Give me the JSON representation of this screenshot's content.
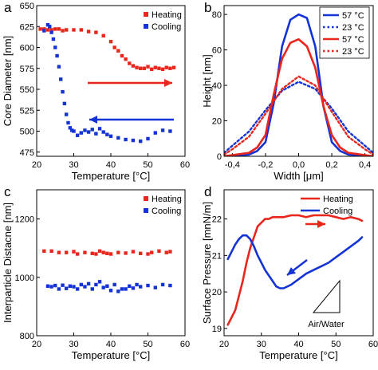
{
  "chart_data": [
    {
      "panel": "a",
      "type": "scatter",
      "xlabel": "Temperature [°C]",
      "ylabel": "Core Diameter [nm]",
      "xlim": [
        20,
        60
      ],
      "ylim": [
        470,
        650
      ],
      "xticks": [
        20,
        30,
        40,
        50,
        60
      ],
      "yticks": [
        475,
        500,
        525,
        550,
        575,
        600,
        625,
        650
      ],
      "legend_position": "top-right",
      "series": [
        {
          "name": "Heating",
          "color": "#e8261c",
          "x": [
            21,
            22,
            23,
            24,
            25,
            26,
            27,
            28,
            30,
            32,
            34,
            36,
            38,
            40,
            41,
            42,
            43,
            44,
            45,
            46,
            47,
            48,
            49,
            50,
            51,
            52,
            53,
            54,
            55,
            56,
            57
          ],
          "y": [
            622,
            622,
            621,
            621,
            622,
            622,
            620,
            621,
            621,
            621,
            619,
            618,
            614,
            607,
            600,
            596,
            590,
            586,
            581,
            578,
            576,
            575,
            575,
            577,
            574,
            576,
            575,
            574,
            576,
            575,
            576
          ]
        },
        {
          "name": "Cooling",
          "color": "#1433d6",
          "x": [
            22,
            23,
            23.5,
            24,
            24.5,
            25,
            25.5,
            26,
            26.5,
            27,
            27.5,
            28,
            28.5,
            29,
            29.5,
            30,
            31,
            32,
            33,
            34,
            35,
            36,
            37,
            38,
            39,
            40,
            42,
            44,
            46,
            48,
            50,
            52,
            54,
            56
          ],
          "y": [
            620,
            627,
            625,
            618,
            610,
            600,
            590,
            577,
            562,
            547,
            533,
            520,
            510,
            504,
            501,
            500,
            495,
            498,
            501,
            499,
            502,
            497,
            503,
            499,
            496,
            494,
            492,
            490,
            489,
            488,
            491,
            498,
            501,
            500
          ]
        }
      ],
      "annotations": [
        "arrow-right-red",
        "arrow-left-blue"
      ]
    },
    {
      "panel": "b",
      "type": "line",
      "xlabel": "Width [μm]",
      "ylabel": "Height [nm]",
      "xlim": [
        -0.45,
        0.45
      ],
      "ylim": [
        0,
        85
      ],
      "xticks": [
        -0.4,
        -0.2,
        0.0,
        0.2,
        0.4
      ],
      "xtick_labels": [
        "-0,4",
        "-0,2",
        "0,0",
        "0,2",
        "0,4"
      ],
      "yticks": [
        0,
        20,
        40,
        60,
        80
      ],
      "legend_position": "top-right",
      "series": [
        {
          "name": "57 °C",
          "color": "#1433d6",
          "style": "solid",
          "x": [
            -0.45,
            -0.3,
            -0.25,
            -0.2,
            -0.15,
            -0.1,
            -0.05,
            0,
            0.05,
            0.1,
            0.15,
            0.2,
            0.25,
            0.3,
            0.45
          ],
          "y": [
            0,
            1,
            3,
            8,
            30,
            62,
            77,
            80,
            78,
            62,
            28,
            8,
            3,
            1,
            0
          ]
        },
        {
          "name": "23 °C",
          "color": "#1433d6",
          "style": "dotted",
          "x": [
            -0.45,
            -0.4,
            -0.3,
            -0.2,
            -0.1,
            0,
            0.1,
            0.2,
            0.3,
            0.4,
            0.45
          ],
          "y": [
            2,
            6,
            14,
            26,
            37,
            42,
            38,
            27,
            14,
            6,
            2
          ]
        },
        {
          "name": "57 °C",
          "color": "#e8261c",
          "style": "solid",
          "x": [
            -0.45,
            -0.3,
            -0.25,
            -0.2,
            -0.15,
            -0.1,
            -0.05,
            0,
            0.05,
            0.1,
            0.15,
            0.2,
            0.25,
            0.3,
            0.45
          ],
          "y": [
            0,
            2,
            5,
            12,
            35,
            55,
            64,
            66,
            62,
            50,
            28,
            12,
            5,
            2,
            0
          ]
        },
        {
          "name": "23 °C",
          "color": "#e8261c",
          "style": "dotted",
          "x": [
            -0.45,
            -0.4,
            -0.3,
            -0.2,
            -0.1,
            0,
            0.1,
            0.2,
            0.3,
            0.4,
            0.45
          ],
          "y": [
            1,
            4,
            11,
            24,
            38,
            45,
            40,
            25,
            11,
            4,
            1
          ]
        }
      ]
    },
    {
      "panel": "c",
      "type": "scatter",
      "xlabel": "Temperature [°C]",
      "ylabel": "Interparticle Distacne [nm]",
      "xlim": [
        20,
        60
      ],
      "ylim": [
        800,
        1300
      ],
      "xticks": [
        20,
        30,
        40,
        50,
        60
      ],
      "yticks": [
        800,
        1000,
        1200
      ],
      "legend_position": "top-right",
      "series": [
        {
          "name": "Heating",
          "color": "#e8261c",
          "x": [
            22,
            24,
            26,
            28,
            30,
            31,
            33,
            35,
            36,
            37,
            38,
            39,
            40,
            42,
            44,
            46,
            48,
            50,
            51,
            53,
            55,
            56
          ],
          "y": [
            1090,
            1090,
            1085,
            1085,
            1088,
            1080,
            1085,
            1082,
            1080,
            1090,
            1085,
            1082,
            1080,
            1085,
            1083,
            1088,
            1082,
            1080,
            1085,
            1090,
            1085,
            1088
          ]
        },
        {
          "name": "Cooling",
          "color": "#1433d6",
          "x": [
            23,
            24,
            25,
            26,
            27,
            28,
            29,
            30,
            31,
            32,
            33,
            34,
            35,
            36,
            37,
            38,
            39,
            40,
            41,
            42,
            43,
            44,
            45,
            46,
            47,
            48,
            50,
            52,
            54,
            56
          ],
          "y": [
            970,
            968,
            972,
            960,
            973,
            962,
            970,
            968,
            960,
            975,
            968,
            978,
            960,
            975,
            985,
            965,
            970,
            955,
            975,
            952,
            960,
            960,
            970,
            963,
            975,
            968,
            972,
            965,
            975,
            972
          ]
        }
      ]
    },
    {
      "panel": "d",
      "type": "line",
      "xlabel": "Temperature [°C]",
      "ylabel": "Surface Pressure [mnN/m]",
      "xlim": [
        20,
        60
      ],
      "ylim": [
        18.8,
        22.8
      ],
      "xticks": [
        20,
        30,
        40,
        50,
        60
      ],
      "yticks": [
        19,
        20,
        21,
        22
      ],
      "legend_position": "top-right",
      "series": [
        {
          "name": "Heating",
          "color": "#e8261c",
          "x": [
            21,
            22,
            23,
            24,
            25,
            26,
            27,
            28,
            29,
            30,
            31,
            32,
            33,
            34,
            36,
            38,
            40,
            42,
            44,
            46,
            48,
            50,
            52,
            54,
            56,
            57
          ],
          "y": [
            19.1,
            19.3,
            19.5,
            19.9,
            20.3,
            20.8,
            21.2,
            21.5,
            21.8,
            21.9,
            22.0,
            22.0,
            22.05,
            22.05,
            22.05,
            22.1,
            22.1,
            22.05,
            22.1,
            22.1,
            22.1,
            22.05,
            22.0,
            22.05,
            22.0,
            21.95
          ]
        },
        {
          "name": "Cooling",
          "color": "#1433d6",
          "x": [
            21,
            22,
            23,
            24,
            25,
            26,
            27,
            28,
            29,
            30,
            31,
            32,
            33,
            34,
            35,
            36,
            38,
            40,
            42,
            44,
            46,
            48,
            50,
            52,
            54,
            56,
            57
          ],
          "y": [
            20.9,
            21.1,
            21.3,
            21.45,
            21.55,
            21.55,
            21.45,
            21.25,
            21.0,
            20.8,
            20.6,
            20.45,
            20.3,
            20.15,
            20.1,
            20.1,
            20.2,
            20.35,
            20.5,
            20.6,
            20.7,
            20.8,
            20.95,
            21.1,
            21.25,
            21.4,
            21.5
          ]
        }
      ],
      "annotations": [
        "arrow-right-red",
        "arrow-down-left-blue",
        "Air/Water"
      ],
      "inset_label": "Air/Water"
    }
  ]
}
